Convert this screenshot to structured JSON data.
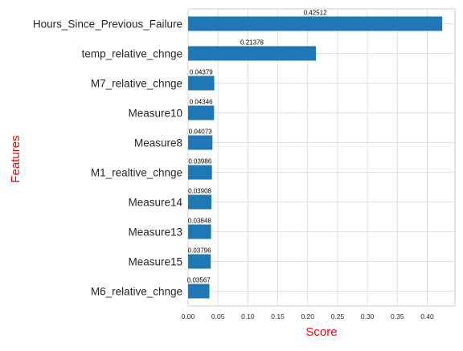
{
  "chart_data": {
    "type": "bar",
    "orientation": "horizontal",
    "xlabel": "Score",
    "ylabel": "Features",
    "xlim": [
      0,
      0.4464
    ],
    "xticks": [
      0.0,
      0.05,
      0.1,
      0.15,
      0.2,
      0.25,
      0.3,
      0.35,
      0.4
    ],
    "xtick_labels": [
      "0.00",
      "0.05",
      "0.10",
      "0.15",
      "0.20",
      "0.25",
      "0.30",
      "0.35",
      "0.40"
    ],
    "grid": true,
    "legend": "none",
    "bar_color": "#1f77b4",
    "axis_label_color": "#ff0000",
    "categories": [
      "Hours_Since_Previous_Failure",
      "temp_relative_chnge",
      "M7_relative_chnge",
      "Measure10",
      "Measure8",
      "M1_realtive_chnge",
      "Measure14",
      "Measure13",
      "Measure15",
      "M6_relative_chnge"
    ],
    "values": [
      0.42512,
      0.21378,
      0.04379,
      0.04346,
      0.04073,
      0.03986,
      0.03908,
      0.03848,
      0.03796,
      0.03567
    ],
    "data_labels": [
      "0.42512",
      "0.21378",
      "0.04379",
      "0.04346",
      "0.04073",
      "0.03986",
      "0.03908",
      "0.03848",
      "0.03796",
      "0.03567"
    ]
  }
}
